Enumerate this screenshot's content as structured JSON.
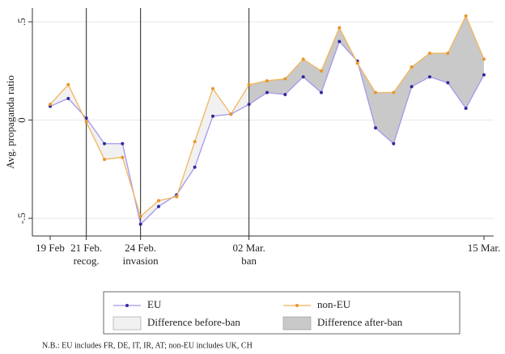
{
  "chart_data": {
    "type": "line",
    "y_label": "Avg. propaganda ratio",
    "categories": [
      "19 Feb",
      null,
      "21 Feb.",
      null,
      null,
      "24 Feb.",
      null,
      null,
      null,
      null,
      null,
      "02 Mar.",
      null,
      null,
      null,
      null,
      null,
      null,
      null,
      null,
      null,
      null,
      null,
      null,
      "15 Mar."
    ],
    "events": [
      {
        "date": "21 Feb.",
        "label": "recog."
      },
      {
        "date": "24 Feb.",
        "label": "invasion"
      },
      {
        "date": "02 Mar.",
        "label": "ban"
      }
    ],
    "series": [
      {
        "name": "EU",
        "color": "#a497ee",
        "marker_color": "#2e2a9c",
        "values": [
          0.07,
          0.11,
          0.01,
          -0.12,
          -0.12,
          -0.53,
          -0.44,
          -0.38,
          -0.24,
          0.02,
          0.03,
          0.08,
          0.14,
          0.13,
          0.22,
          0.14,
          0.4,
          0.3,
          -0.04,
          -0.12,
          0.17,
          0.22,
          0.19,
          0.06,
          0.23
        ]
      },
      {
        "name": "non-EU",
        "color": "#f2b65c",
        "marker_color": "#e8962a",
        "values": [
          0.08,
          0.18,
          -0.01,
          -0.2,
          -0.19,
          -0.49,
          -0.41,
          -0.39,
          -0.11,
          0.16,
          0.03,
          0.18,
          0.2,
          0.21,
          0.31,
          0.25,
          0.47,
          0.29,
          0.14,
          0.14,
          0.27,
          0.34,
          0.34,
          0.53,
          0.31
        ]
      }
    ],
    "areas": [
      {
        "name": "Difference before-ban",
        "color": "#f1f1f1",
        "from": "19 Feb",
        "to": "02 Mar."
      },
      {
        "name": "Difference after-ban",
        "color": "#c9c9c9",
        "from": "02 Mar.",
        "to": "15 Mar."
      }
    ],
    "ylim": [
      -0.59,
      0.57
    ],
    "yticks": [
      {
        "value": -0.5,
        "label": "-.5"
      },
      0,
      {
        "value": 0.5,
        "label": ".5"
      }
    ],
    "grid": true,
    "note": "N.B.: EU includes FR, DE, IT, IR, AT; non-EU includes UK, CH"
  }
}
